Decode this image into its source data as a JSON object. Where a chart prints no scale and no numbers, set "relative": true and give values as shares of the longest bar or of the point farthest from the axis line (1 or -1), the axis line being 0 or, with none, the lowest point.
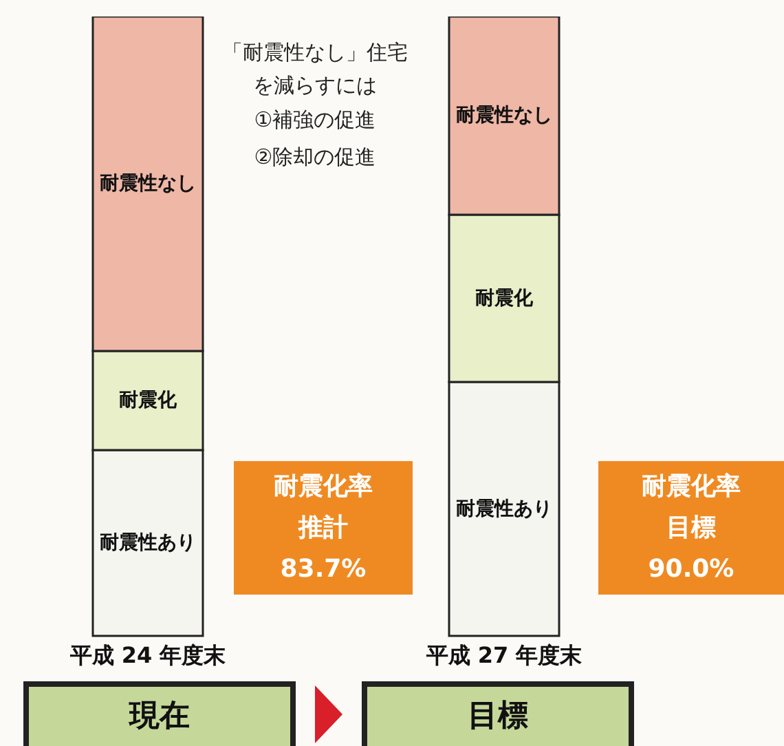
{
  "chart_data": {
    "type": "bar",
    "stacked": true,
    "relative": true,
    "legend": false,
    "categories": [
      "平成 24 年度末",
      "平成 27 年度末"
    ],
    "series": [
      {
        "name": "耐震性あり",
        "color": "#f4f5ef",
        "values": [
          0.3,
          0.41
        ]
      },
      {
        "name": "耐震化",
        "color": "#e8efc9",
        "values": [
          0.16,
          0.27
        ]
      },
      {
        "name": "耐震性なし",
        "color": "#eeb7a6",
        "values": [
          0.54,
          0.32
        ]
      }
    ],
    "annotations": [
      "「耐震性なし」住宅を減らすには",
      "①補強の促進",
      "②除却の促進",
      "耐震化率",
      "推計",
      "83.7%",
      "耐震化率",
      "目標",
      "90.0%",
      "現在",
      "目標"
    ]
  }
}
